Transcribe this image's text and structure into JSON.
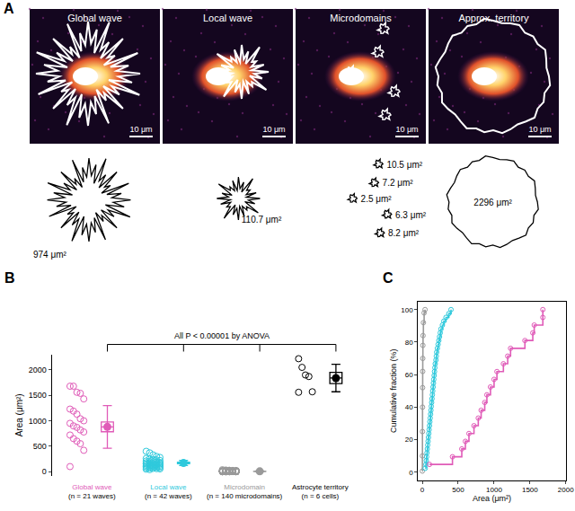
{
  "panel_a": {
    "panel": "A",
    "images": [
      {
        "title": "Global wave",
        "scale_bar": "10 μm",
        "areas": [
          "974 μm²"
        ]
      },
      {
        "title": "Local wave",
        "scale_bar": "10 μm",
        "areas": [
          "110.7 μm²"
        ]
      },
      {
        "title": "Microdomains",
        "scale_bar": "10 μm",
        "areas": [
          "10.5 μm²",
          "7.2 μm²",
          "2.5 μm²",
          "6.3 μm²",
          "8.2 μm²"
        ]
      },
      {
        "title": "Approx. territory",
        "scale_bar": "10 μm",
        "areas": [
          "2296 μm²"
        ]
      }
    ]
  },
  "chart_data": [
    {
      "panel": "B",
      "type": "scatter",
      "ylabel": "Area (μm²)",
      "ylim": [
        -80,
        2300
      ],
      "yticks": [
        0,
        500,
        1000,
        1500,
        2000
      ],
      "grid": false,
      "tick_labels": "y",
      "marker": "open circle",
      "annotation": "All P < 0.00001 by ANOVA",
      "series": [
        {
          "name": "Global wave",
          "n_label": "(n = 21 waves)",
          "color": "#e05bb8",
          "values": [
            1680,
            1680,
            1560,
            1540,
            1430,
            1230,
            1190,
            1130,
            1040,
            1000,
            950,
            900,
            870,
            820,
            780,
            720,
            650,
            600,
            550,
            420,
            100
          ],
          "mean": 880,
          "sem": 95,
          "sd": 420
        },
        {
          "name": "Local wave",
          "n_label": "(n = 42 waves)",
          "color": "#2ec9dc",
          "values": [
            400,
            370,
            330,
            300,
            280,
            260,
            250,
            240,
            230,
            220,
            210,
            200,
            195,
            190,
            180,
            175,
            170,
            165,
            160,
            155,
            150,
            145,
            140,
            135,
            130,
            125,
            120,
            115,
            110,
            105,
            100,
            95,
            90,
            85,
            80,
            75,
            70,
            65,
            60,
            55,
            50,
            40
          ],
          "mean": 170,
          "sem": 15,
          "sd": 50
        },
        {
          "name": "Microdomain",
          "n_label": "(n = 140 microdomains)",
          "color": "#9a9a9a",
          "values": [
            38,
            32,
            28,
            25,
            23,
            21,
            20,
            19,
            18,
            17,
            16,
            15,
            15,
            14,
            14,
            13,
            13,
            12,
            12,
            12,
            11,
            11,
            11,
            10.5,
            10,
            10,
            10,
            9.5,
            9,
            9,
            9,
            8.5,
            8.2,
            8,
            8,
            8,
            7.8,
            7.5,
            7.5,
            7.2,
            7,
            7,
            7,
            6.8,
            6.5,
            6.5,
            6.3,
            6.2,
            6,
            6,
            6,
            5.8,
            5.6,
            5.5,
            5.5,
            5.3,
            5.2,
            5,
            5,
            5,
            5,
            4.9,
            4.8,
            4.7,
            4.6,
            4.5,
            4.5,
            4.4,
            4.3,
            4.2,
            4.1,
            4,
            4,
            4,
            3.9,
            3.8,
            3.7,
            3.6,
            3.5,
            3.5,
            3.4,
            3.3,
            3.2,
            3.2,
            3.1,
            3,
            3,
            3,
            2.9,
            2.8,
            2.8,
            2.7,
            2.6,
            2.5,
            2.5,
            2.5,
            2.4,
            2.3,
            2.2,
            2.2,
            2.1,
            2,
            2,
            2,
            1.9,
            1.9,
            1.8,
            1.8,
            1.7,
            1.7,
            1.6,
            1.6,
            1.5,
            1.5,
            1.5,
            1.4,
            1.4,
            1.3,
            1.3,
            1.2,
            1.2,
            1.2,
            1.1,
            1.1,
            1,
            1,
            1,
            0.9,
            0.9,
            0.8,
            0.8,
            0.8,
            0.7,
            0.7,
            0.6,
            0.6,
            0.5,
            0.5,
            0.4,
            0.3
          ],
          "mean": 6.5,
          "sem": 0.6,
          "sd": 6.5
        },
        {
          "name": "Astrocyte territory",
          "n_label": "(n = 6 cells)",
          "color": "#000000",
          "values": [
            2220,
            2050,
            1900,
            1870,
            1570,
            1560
          ],
          "mean": 1840,
          "sem": 110,
          "sd": 270
        }
      ]
    },
    {
      "panel": "C",
      "type": "line",
      "xlabel": "Area (μm²)",
      "ylabel": "Cumulative fraction (%)",
      "xlim": [
        -60,
        2000
      ],
      "xticks": [
        0,
        500,
        1000,
        1500,
        2000
      ],
      "ylim": [
        -5,
        105
      ],
      "yticks": [
        0,
        20,
        40,
        60,
        80,
        100
      ],
      "grid": false,
      "tick_labels": true,
      "marker": "open circle",
      "line_style": "step",
      "series": [
        {
          "name": "Microdomain",
          "color": "#9a9a9a",
          "x": [
            0.3,
            1,
            2,
            3,
            4,
            5,
            6,
            8,
            10,
            15,
            25,
            38
          ],
          "values": [
            0.7,
            10,
            25,
            40,
            52,
            62,
            70,
            78,
            84,
            92,
            98,
            100
          ]
        },
        {
          "name": "Local wave",
          "color": "#2ec9dc",
          "x": [
            40,
            50,
            55,
            60,
            65,
            70,
            75,
            80,
            85,
            90,
            95,
            100,
            105,
            110,
            115,
            120,
            125,
            130,
            135,
            140,
            145,
            150,
            155,
            160,
            165,
            170,
            175,
            180,
            190,
            195,
            200,
            210,
            220,
            230,
            240,
            250,
            260,
            280,
            300,
            330,
            370,
            400
          ],
          "values": [
            2.4,
            4.8,
            7.1,
            9.5,
            11.9,
            14.3,
            16.7,
            19.0,
            21.4,
            23.8,
            26.2,
            28.6,
            31.0,
            33.3,
            35.7,
            38.1,
            40.5,
            42.9,
            45.2,
            47.6,
            50.0,
            52.4,
            54.8,
            57.1,
            59.5,
            61.9,
            64.3,
            66.7,
            69.0,
            71.4,
            73.8,
            76.2,
            78.6,
            81.0,
            83.3,
            85.7,
            88.1,
            90.5,
            92.9,
            95.2,
            97.6,
            100
          ]
        },
        {
          "name": "Global wave",
          "color": "#e05bb8",
          "x": [
            100,
            420,
            550,
            600,
            650,
            720,
            780,
            820,
            870,
            900,
            950,
            1000,
            1040,
            1130,
            1190,
            1230,
            1430,
            1540,
            1560,
            1680,
            1680
          ],
          "values": [
            4.8,
            9.5,
            14.3,
            19.0,
            23.8,
            28.6,
            33.3,
            38.1,
            42.9,
            47.6,
            52.4,
            57.1,
            61.9,
            66.7,
            71.4,
            76.2,
            81.0,
            85.7,
            90.5,
            95.2,
            100
          ]
        }
      ]
    }
  ]
}
